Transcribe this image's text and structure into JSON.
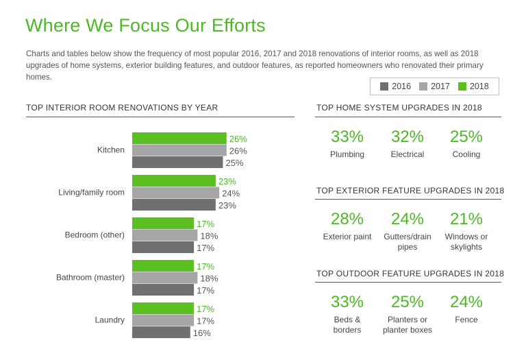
{
  "header": {
    "title": "Where We Focus Our Efforts",
    "subtitle": "Charts and tables below show the frequency of most popular 2016, 2017 and 2018 renovations of interior rooms, as well as 2018 upgrades of home systems, exterior building features, and outdoor features, as reported homeowners who renovated their primary homes."
  },
  "legend": [
    {
      "label": "2016",
      "color": "#707070"
    },
    {
      "label": "2017",
      "color": "#a6a6a6"
    },
    {
      "label": "2018",
      "color": "#5bbf21"
    }
  ],
  "chart_data": {
    "type": "bar",
    "orientation": "horizontal",
    "title": "TOP INTERIOR ROOM RENOVATIONS BY YEAR",
    "categories": [
      "Kitchen",
      "Living/family room",
      "Bedroom (other)",
      "Bathroom (master)",
      "Laundry"
    ],
    "series": [
      {
        "name": "2018",
        "color": "#5bbf21",
        "values": [
          26,
          23,
          17,
          17,
          17
        ],
        "labels": [
          "26%",
          "23%",
          "17%",
          "17%",
          "17%"
        ]
      },
      {
        "name": "2017",
        "color": "#a6a6a6",
        "values": [
          26,
          24,
          18,
          18,
          17
        ],
        "labels": [
          "26%",
          "24%",
          "18%",
          "18%",
          "17%"
        ]
      },
      {
        "name": "2016",
        "color": "#707070",
        "values": [
          25,
          23,
          17,
          17,
          16
        ],
        "labels": [
          "25%",
          "23%",
          "17%",
          "17%",
          "16%"
        ]
      }
    ],
    "xlim": [
      0,
      30
    ],
    "grid": false,
    "legend_position": "top-right"
  },
  "home_systems": {
    "title": "TOP HOME SYSTEM UPGRADES IN 2018",
    "items": [
      {
        "value": "33%",
        "label": "Plumbing"
      },
      {
        "value": "32%",
        "label": "Electrical"
      },
      {
        "value": "25%",
        "label": "Cooling"
      }
    ]
  },
  "exterior": {
    "title": "TOP EXTERIOR FEATURE UPGRADES IN 2018",
    "items": [
      {
        "value": "28%",
        "label": "Exterior paint"
      },
      {
        "value": "24%",
        "label": "Gutters/drain pipes"
      },
      {
        "value": "21%",
        "label": "Windows or skylights"
      }
    ]
  },
  "outdoor": {
    "title": "TOP OUTDOOR FEATURE UPGRADES IN 2018",
    "items": [
      {
        "value": "33%",
        "label": "Beds & borders"
      },
      {
        "value": "25%",
        "label": "Planters or planter boxes"
      },
      {
        "value": "24%",
        "label": "Fence"
      }
    ]
  }
}
